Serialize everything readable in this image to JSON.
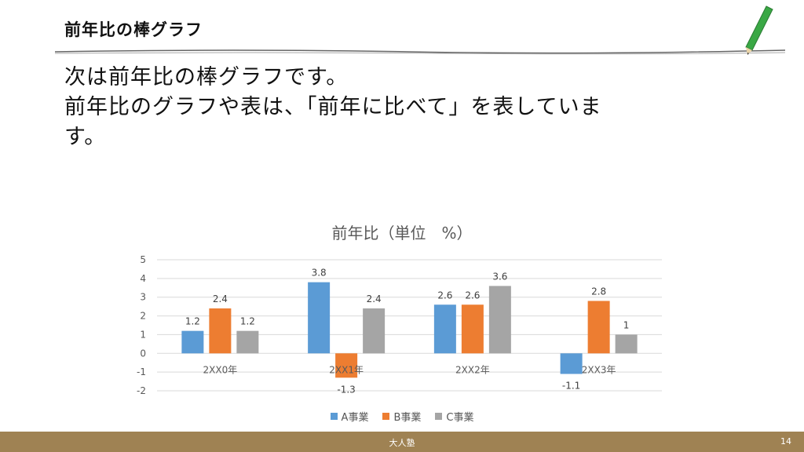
{
  "header": {
    "title": "前年比の棒グラフ"
  },
  "body": {
    "lines": [
      "次は前年比の棒グラフです。",
      "前年比のグラフや表は、「前年に比べて」を表していま",
      "す。"
    ]
  },
  "chart_data": {
    "type": "bar",
    "title": "前年比（単位　%）",
    "categories": [
      "2XX0年",
      "2XX1年",
      "2XX2年",
      "2XX3年"
    ],
    "series": [
      {
        "name": "A事業",
        "values": [
          1.2,
          3.8,
          2.6,
          -1.1
        ],
        "labels": [
          "1.2",
          "3.8",
          "2.6",
          "-1.1"
        ],
        "color": "#5b9bd5"
      },
      {
        "name": "B事業",
        "values": [
          2.4,
          -1.3,
          2.6,
          2.8
        ],
        "labels": [
          "2.4",
          "-1.3",
          "2.6",
          "2.8"
        ],
        "color": "#ed7d31"
      },
      {
        "name": "C事業",
        "values": [
          1.2,
          2.4,
          3.6,
          1
        ],
        "labels": [
          "1.2",
          "2.4",
          "3.6",
          "1"
        ],
        "color": "#a5a5a5"
      }
    ],
    "yticks": [
      "5",
      "4",
      "3",
      "2",
      "1",
      "0",
      "-1",
      "-2"
    ],
    "ylim": [
      -2,
      5
    ],
    "grid": true,
    "legend": "bottom"
  },
  "footer": {
    "center": "大人塾",
    "page": "14"
  },
  "colors": {
    "footer": "#9f8253",
    "pencil": "#3aa845"
  },
  "icons": {
    "pencil": "pencil-icon"
  }
}
